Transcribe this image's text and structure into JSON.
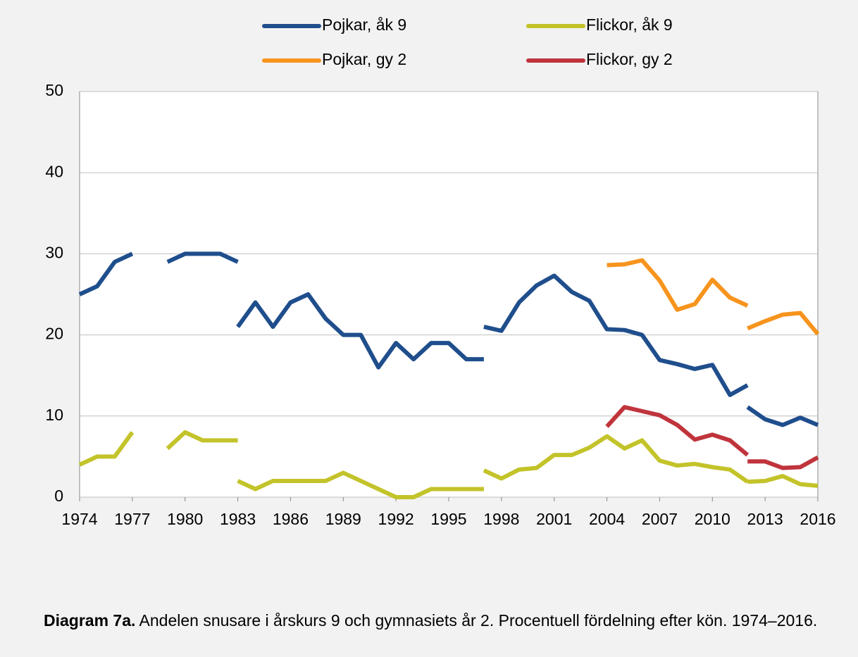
{
  "chart_data": {
    "type": "line",
    "caption": {
      "bold": "Diagram 7a.",
      "text": " Andelen snusare i årskurs 9 och gymnasiets år 2. Procentuell fördelning efter kön. 1974–2016."
    },
    "x": [
      1974,
      1975,
      1976,
      1977,
      1978,
      1979,
      1980,
      1981,
      1982,
      1983,
      1983,
      1983,
      1984,
      1985,
      1986,
      1987,
      1988,
      1989,
      1990,
      1991,
      1992,
      1993,
      1994,
      1995,
      1996,
      1997,
      1997,
      1997,
      1998,
      1999,
      2000,
      2001,
      2002,
      2003,
      2004,
      2005,
      2006,
      2007,
      2008,
      2009,
      2010,
      2011,
      2012,
      2012,
      2012,
      2013,
      2014,
      2015,
      2016
    ],
    "series": [
      {
        "name": "Pojkar, åk 9",
        "color": "#1f4e8c",
        "values": [
          25,
          26,
          29,
          30,
          null,
          29,
          30,
          30,
          30,
          29,
          null,
          21,
          24,
          21,
          24,
          25,
          22,
          20,
          20,
          16,
          19,
          17,
          19,
          19,
          17,
          17,
          null,
          21,
          20.5,
          24,
          26.1,
          27.3,
          25.3,
          24.2,
          20.7,
          20.6,
          20,
          16.9,
          16.4,
          15.8,
          16.3,
          12.6,
          13.8,
          null,
          11.1,
          9.6,
          8.9,
          9.8,
          8.9
        ]
      },
      {
        "name": "Flickor, åk 9",
        "color": "#c3c32a",
        "values": [
          4,
          5,
          5,
          8,
          null,
          6,
          8,
          7,
          7,
          7,
          null,
          2,
          1,
          2,
          2,
          2,
          2,
          3,
          2,
          1,
          0,
          0,
          1,
          1,
          1,
          1,
          null,
          3.3,
          2.3,
          3.4,
          3.6,
          5.2,
          5.2,
          6.1,
          7.5,
          6,
          7,
          4.5,
          3.9,
          4.1,
          3.7,
          3.4,
          1.9,
          null,
          1.9,
          2,
          2.6,
          1.6,
          1.4
        ]
      },
      {
        "name": "Pojkar, gy 2",
        "color": "#f7941d",
        "values": [
          null,
          null,
          null,
          null,
          null,
          null,
          null,
          null,
          null,
          null,
          null,
          null,
          null,
          null,
          null,
          null,
          null,
          null,
          null,
          null,
          null,
          null,
          null,
          null,
          null,
          null,
          null,
          null,
          null,
          null,
          null,
          null,
          null,
          null,
          28.6,
          28.7,
          29.2,
          26.7,
          23.1,
          23.8,
          26.8,
          24.6,
          23.6,
          null,
          20.8,
          21.7,
          22.5,
          22.7,
          20.1
        ]
      },
      {
        "name": "Flickor, gy 2",
        "color": "#c0343c",
        "values": [
          null,
          null,
          null,
          null,
          null,
          null,
          null,
          null,
          null,
          null,
          null,
          null,
          null,
          null,
          null,
          null,
          null,
          null,
          null,
          null,
          null,
          null,
          null,
          null,
          null,
          null,
          null,
          null,
          null,
          null,
          null,
          null,
          null,
          null,
          8.7,
          11.1,
          10.6,
          10.1,
          8.9,
          7.1,
          7.7,
          7,
          5.2,
          null,
          4.4,
          4.4,
          3.6,
          3.7,
          4.9
        ]
      }
    ],
    "xlim": [
      1974,
      2016
    ],
    "xticks": [
      1974,
      1977,
      1980,
      1983,
      1986,
      1989,
      1992,
      1995,
      1998,
      2001,
      2004,
      2007,
      2010,
      2013,
      2016
    ],
    "ylim": [
      0,
      50
    ],
    "yticks": [
      0,
      10,
      20,
      30,
      40,
      50
    ],
    "grid": true
  }
}
